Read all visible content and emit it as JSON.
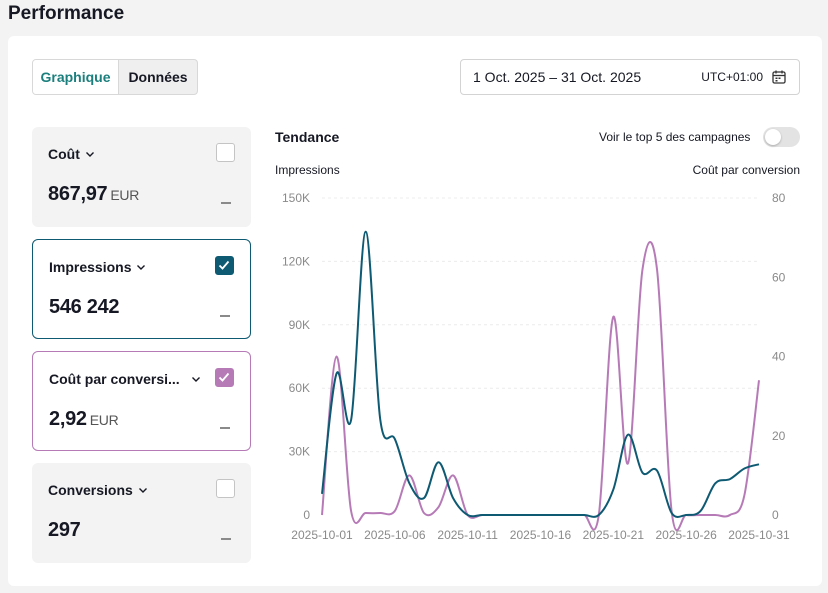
{
  "page": {
    "title": "Performance"
  },
  "tabs": [
    {
      "label": "Graphique"
    },
    {
      "label": "Données"
    }
  ],
  "daterange": {
    "range": "1 Oct. 2025 – 31 Oct. 2025",
    "timezone": "UTC+01:00",
    "icon": "calendar-icon"
  },
  "metrics": [
    {
      "name": "Coût",
      "value": "867,97",
      "unit": "EUR",
      "checked": false,
      "icon": "chevron-down-icon"
    },
    {
      "name": "Impressions",
      "value": "546 242",
      "unit": "",
      "checked": true,
      "color": "#0f5a73",
      "icon": "chevron-down-icon"
    },
    {
      "name": "Coût par conversi...",
      "value": "2,92",
      "unit": "EUR",
      "checked": true,
      "color": "#b67bb7",
      "icon": "chevron-down-icon"
    },
    {
      "name": "Conversions",
      "value": "297",
      "unit": "",
      "checked": false,
      "icon": "chevron-down-icon"
    }
  ],
  "trend": {
    "title": "Tendance",
    "top5_label": "Voir le top 5 des campagnes",
    "top5_enabled": false
  },
  "chart_data": {
    "type": "line",
    "ylabel_left": "Impressions",
    "ylabel_right": "Coût par conversion",
    "yticks_left": [
      "0",
      "30K",
      "60K",
      "90K",
      "120K",
      "150K"
    ],
    "yticks_right": [
      "0",
      "20",
      "40",
      "60",
      "80"
    ],
    "ylim_left": [
      0,
      150000
    ],
    "ylim_right": [
      0,
      80
    ],
    "x": [
      "2025-10-01",
      "2025-10-02",
      "2025-10-03",
      "2025-10-04",
      "2025-10-05",
      "2025-10-06",
      "2025-10-07",
      "2025-10-08",
      "2025-10-09",
      "2025-10-10",
      "2025-10-11",
      "2025-10-12",
      "2025-10-13",
      "2025-10-14",
      "2025-10-15",
      "2025-10-16",
      "2025-10-17",
      "2025-10-18",
      "2025-10-19",
      "2025-10-20",
      "2025-10-21",
      "2025-10-22",
      "2025-10-23",
      "2025-10-24",
      "2025-10-25",
      "2025-10-26",
      "2025-10-27",
      "2025-10-28",
      "2025-10-29",
      "2025-10-30",
      "2025-10-31"
    ],
    "xtick_labels": [
      "2025-10-01",
      "2025-10-06",
      "2025-10-11",
      "2025-10-16",
      "2025-10-21",
      "2025-10-26",
      "2025-10-31"
    ],
    "grid": true,
    "series": [
      {
        "name": "Impressions",
        "axis": "left",
        "color": "#0f5a73",
        "values": [
          10000,
          67000,
          45000,
          134000,
          45000,
          36000,
          15000,
          8000,
          25000,
          8000,
          0,
          0,
          0,
          0,
          0,
          0,
          0,
          0,
          0,
          0,
          12000,
          38000,
          20000,
          21000,
          1000,
          0,
          2000,
          15000,
          17000,
          22000,
          24000
        ]
      },
      {
        "name": "Coût par conversion",
        "axis": "right",
        "color": "#b67bb7",
        "values": [
          0,
          40,
          1,
          0.5,
          0.5,
          1,
          10,
          0.5,
          2,
          10,
          0,
          0,
          0,
          0,
          0,
          0,
          0,
          0,
          0,
          0,
          50,
          13,
          62,
          62,
          1,
          0,
          0,
          0,
          0,
          5,
          34
        ]
      }
    ]
  }
}
